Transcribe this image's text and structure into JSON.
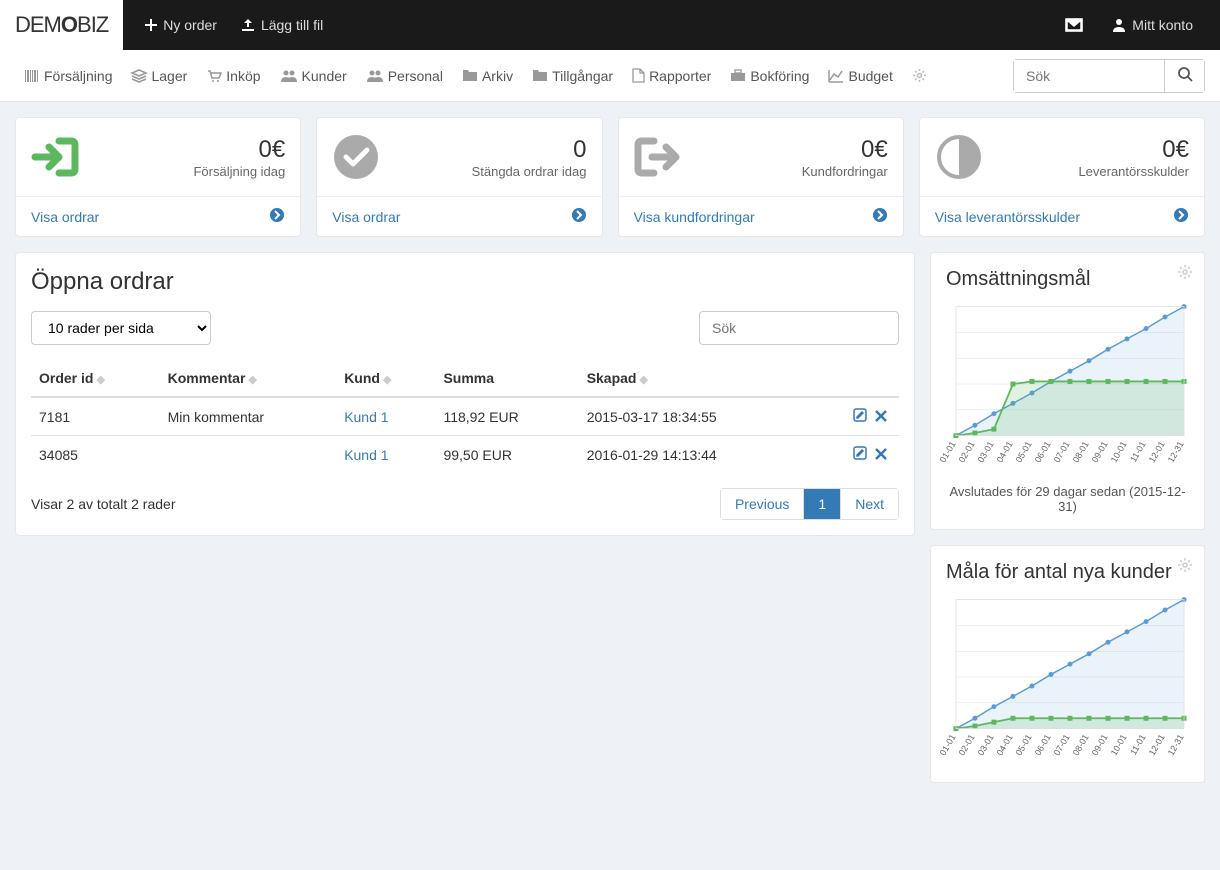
{
  "brand": {
    "part1": "DEM",
    "part2": "O",
    "part3": "BIZ"
  },
  "topbar": {
    "new_order": "Ny order",
    "add_file": "Lägg till fil",
    "my_account": "Mitt konto"
  },
  "nav": {
    "items": [
      "Försäljning",
      "Lager",
      "Inköp",
      "Kunder",
      "Personal",
      "Arkiv",
      "Tillgångar",
      "Rapporter",
      "Bokföring",
      "Budget"
    ],
    "search_placeholder": "Sök"
  },
  "cards": [
    {
      "value": "0€",
      "label": "Försäljning idag",
      "link": "Visa ordrar",
      "icon": "login",
      "color": "#5cb85c"
    },
    {
      "value": "0",
      "label": "Stängda ordrar idag",
      "link": "Visa ordrar",
      "icon": "check",
      "color": "#aaa"
    },
    {
      "value": "0€",
      "label": "Kundfordringar",
      "link": "Visa kundfordringar",
      "icon": "out",
      "color": "#aaa"
    },
    {
      "value": "0€",
      "label": "Leverantörsskulder",
      "link": "Visa leverantörsskulder",
      "icon": "half",
      "color": "#aaa"
    }
  ],
  "orders": {
    "title": "Öppna ordrar",
    "rows_per_page": "10 rader per sida",
    "search_placeholder": "Sök",
    "columns": [
      "Order id",
      "Kommentar",
      "Kund",
      "Summa",
      "Skapad"
    ],
    "rows": [
      {
        "id": "7181",
        "comment": "Min kommentar",
        "customer": "Kund 1",
        "sum": "118,92 EUR",
        "created": "2015-03-17 18:34:55"
      },
      {
        "id": "34085",
        "comment": "",
        "customer": "Kund 1",
        "sum": "99,50 EUR",
        "created": "2016-01-29 14:13:44"
      }
    ],
    "footer_text": "Visar 2 av totalt 2 rader",
    "prev": "Previous",
    "page": "1",
    "next": "Next"
  },
  "chart1": {
    "title": "Omsättningsmål",
    "caption": "Avslutades för 29 dagar sedan (2015-12-31)",
    "xlabels": [
      "01-01",
      "02-01",
      "03-01",
      "04-01",
      "05-01",
      "06-01",
      "07-01",
      "08-01",
      "09-01",
      "10-01",
      "11-01",
      "12-01",
      "12-31"
    ],
    "line_color": "#5b9bd5",
    "target_color": "#5cb85c",
    "grid_color": "#e0e0e0",
    "series_linear": [
      0,
      8,
      17,
      25,
      33,
      42,
      50,
      58,
      67,
      75,
      83,
      92,
      100
    ],
    "series_target": [
      0,
      2,
      5,
      40,
      42,
      42,
      42,
      42,
      42,
      42,
      42,
      42,
      42
    ]
  },
  "chart2": {
    "title": "Måla för antal nya kunder",
    "xlabels": [
      "01-01",
      "02-01",
      "03-01",
      "04-01",
      "05-01",
      "06-01",
      "07-01",
      "08-01",
      "09-01",
      "10-01",
      "11-01",
      "12-01",
      "12-31"
    ],
    "line_color": "#5b9bd5",
    "target_color": "#5cb85c",
    "grid_color": "#e0e0e0",
    "series_linear": [
      0,
      8,
      17,
      25,
      33,
      42,
      50,
      58,
      67,
      75,
      83,
      92,
      100
    ],
    "series_target": [
      0,
      2,
      5,
      8,
      8,
      8,
      8,
      8,
      8,
      8,
      8,
      8,
      8
    ]
  }
}
